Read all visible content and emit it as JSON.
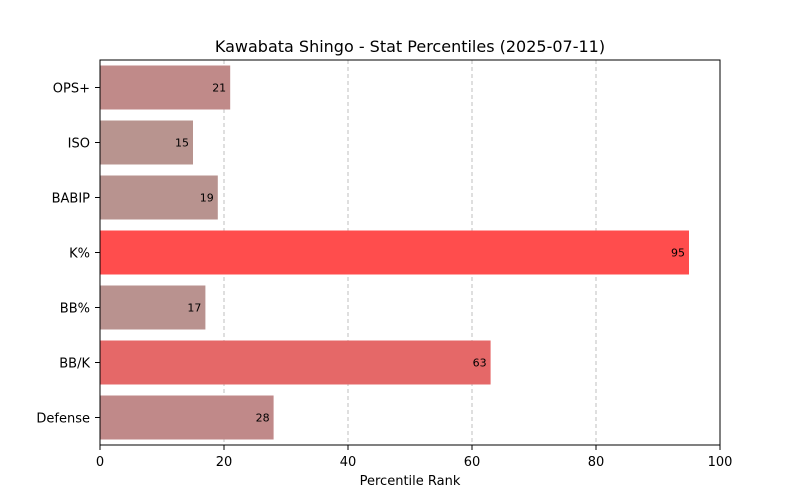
{
  "chart_data": {
    "type": "bar",
    "orientation": "horizontal",
    "title": "Kawabata Shingo - Stat Percentiles (2025-07-11)",
    "xlabel": "Percentile Rank",
    "ylabel": "",
    "xlim": [
      0,
      100
    ],
    "xticks": [
      0,
      20,
      40,
      60,
      80,
      100
    ],
    "grid": "x-dashed",
    "categories": [
      "OPS+",
      "ISO",
      "BABIP",
      "K%",
      "BB%",
      "BB/K",
      "Defense"
    ],
    "values": [
      21,
      15,
      19,
      95,
      17,
      63,
      28
    ],
    "colors": [
      "#c08a89",
      "#b8948f",
      "#b8938f",
      "#ff4d4d",
      "#b9928f",
      "#e56868",
      "#c08989"
    ]
  }
}
